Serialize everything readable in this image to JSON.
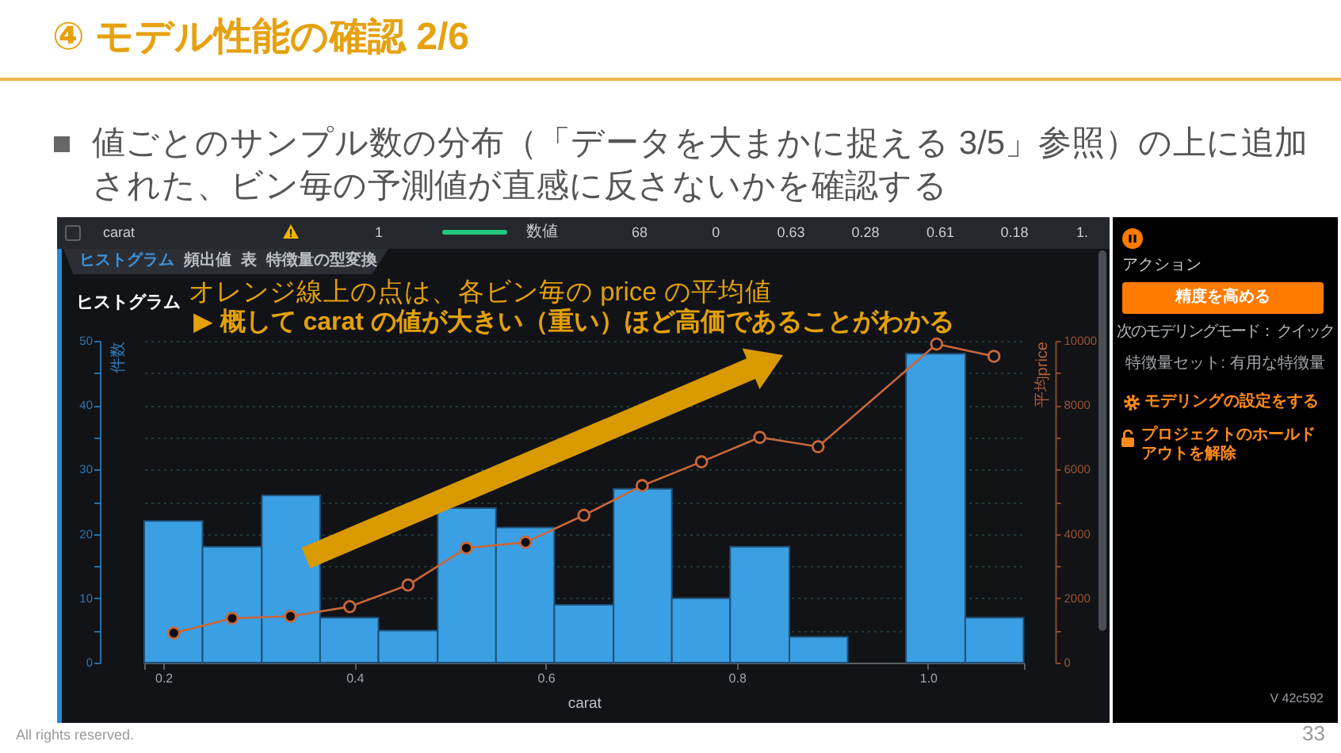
{
  "chart_data": {
    "type": "histogram",
    "title": "④ モデル性能の確認 2/6",
    "subtitle": "値ごとのサンプル数の分布（「データを大まかに捉える 3/5」参照）の上に追加された、ビン毎の予測値が直感に反さないかを確認する",
    "xlabel": "carat",
    "ylabel": "件数",
    "y2label": "平均price",
    "bins": [
      0.18,
      0.241,
      0.303,
      0.364,
      0.425,
      0.487,
      0.548,
      0.609,
      0.671,
      0.732,
      0.793,
      0.855,
      0.916,
      0.977,
      1.039,
      1.1
    ],
    "series": [
      {
        "color": "#3b9fe3",
        "values": [
          22,
          18,
          26,
          7,
          5,
          24,
          21,
          9,
          27,
          10,
          18,
          4,
          null,
          48,
          7
        ]
      },
      {
        "type": "line",
        "axis": "y2",
        "color": "#c9673a",
        "x": [
          0.211,
          0.272,
          0.333,
          0.395,
          0.456,
          0.517,
          0.579,
          0.64,
          0.701,
          0.763,
          0.824,
          0.885,
          1.009,
          1.069
        ],
        "values": [
          920,
          1380,
          1440,
          1740,
          2410,
          3560,
          3740,
          4580,
          5500,
          6240,
          7000,
          6710,
          9900,
          9520
        ]
      }
    ],
    "xlim": [
      0.18,
      1.1
    ],
    "xticks": [
      {
        "value": 0.18,
        "label": null
      },
      0.2,
      0.4,
      0.6,
      0.8,
      {
        "value": 1,
        "label": "1.0"
      },
      {
        "value": 1.1,
        "label": null
      }
    ],
    "ylim": [
      0,
      50
    ],
    "yticks": [
      0,
      {
        "value": 5,
        "label": null
      },
      10,
      {
        "value": 15,
        "label": null
      },
      20,
      {
        "value": 25,
        "label": null
      },
      30,
      {
        "value": 35,
        "label": null
      },
      40,
      {
        "value": 45,
        "label": null
      },
      50
    ],
    "y2lim": [
      0,
      10000
    ],
    "y2ticks": [
      0,
      {
        "value": 1000,
        "label": null
      },
      2000,
      {
        "value": 3000,
        "label": null
      },
      4000,
      {
        "value": 5000,
        "label": null
      },
      6000,
      {
        "value": 7000,
        "label": null
      },
      8000,
      {
        "value": 9000,
        "label": null
      },
      10000
    ],
    "grid": "y",
    "marker": "circle",
    "annotations": [
      "ヒストグラム",
      "オレンジ線上の点は、各ビン毎の price の平均値",
      "▶ 概して carat の値が大きい（重い）ほど高価であることがわかる",
      "carat",
      "1",
      "数値",
      "68",
      "0",
      "0.63",
      "0.28",
      "0.61",
      "0.18",
      "1.",
      "ヒストグラム",
      "頻出値",
      "表",
      "特徴量の型変換",
      "アクション",
      "精度を高める",
      "次のモデリングモード： クイック",
      "特徴量セット: 有用な特徴量",
      "モデリングの設定をする",
      "プロジェクトのホールドアウトを解除",
      "V 42c592",
      "All rights reserved.",
      "33"
    ]
  }
}
